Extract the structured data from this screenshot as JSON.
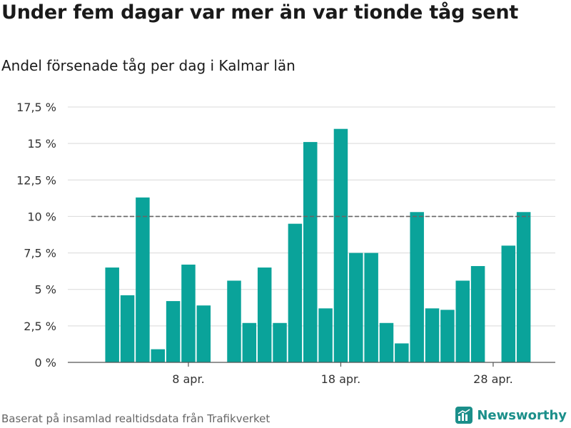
{
  "title": "Under fem dagar var mer än var tionde tåg sent",
  "subtitle": "Andel försenade tåg per dag i Kalmar län",
  "source": "Baserat på insamlad realtidsdata från Trafikverket",
  "brand": "Newsworthy",
  "colors": {
    "bar": "#0aa39a",
    "reference": "#666666",
    "grid": "#d9d9d9",
    "brand": "#1b8f8a"
  },
  "chart_data": {
    "type": "bar",
    "x": [
      "2023-04-01",
      "2023-04-02",
      "2023-04-03",
      "2023-04-04",
      "2023-04-05",
      "2023-04-06",
      "2023-04-07",
      "2023-04-08",
      "2023-04-09",
      "2023-04-10",
      "2023-04-11",
      "2023-04-12",
      "2023-04-13",
      "2023-04-14",
      "2023-04-15",
      "2023-04-16",
      "2023-04-17",
      "2023-04-18",
      "2023-04-19",
      "2023-04-20",
      "2023-04-21",
      "2023-04-22",
      "2023-04-23",
      "2023-04-24",
      "2023-04-25",
      "2023-04-26",
      "2023-04-27",
      "2023-04-28",
      "2023-04-29",
      "2023-04-30"
    ],
    "values": [
      0,
      0,
      6.5,
      4.6,
      11.3,
      0.9,
      4.2,
      6.7,
      3.9,
      null,
      5.6,
      2.7,
      6.5,
      2.7,
      9.5,
      15.1,
      3.7,
      16.0,
      7.5,
      7.5,
      2.7,
      1.3,
      10.3,
      3.7,
      3.6,
      5.6,
      6.6,
      null,
      8.0,
      10.3
    ],
    "reference_line": {
      "value": 10
    },
    "xticks": [
      "8 apr.",
      "18 apr.",
      "28 apr."
    ],
    "yticks": [
      "0 %",
      "2,5 %",
      "5 %",
      "7,5 %",
      "10 %",
      "12,5 %",
      "15 %",
      "17,5 %"
    ],
    "ylim": [
      0,
      17.5
    ],
    "grid": true
  }
}
